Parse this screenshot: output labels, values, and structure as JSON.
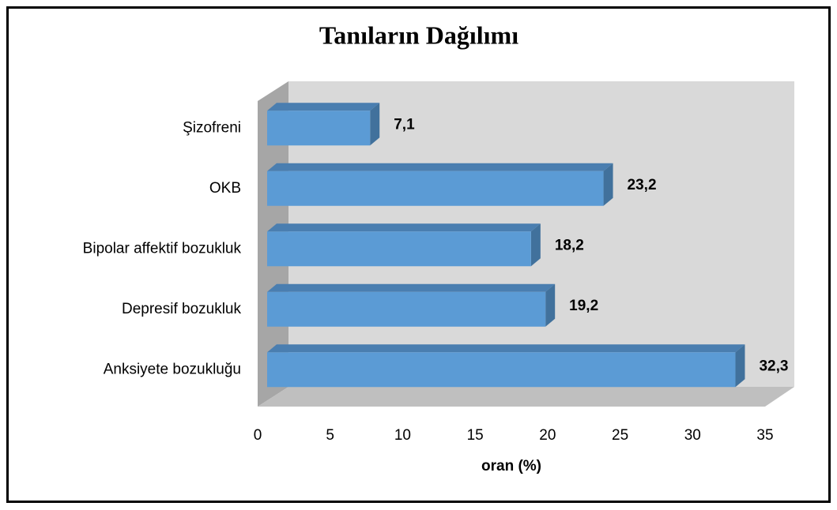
{
  "chart_data": {
    "type": "bar",
    "orientation": "horizontal",
    "title": "Tanıların Dağılımı",
    "categories": [
      "Şizofreni",
      "OKB",
      "Bipolar affektif bozukluk",
      "Depresif bozukluk",
      "Anksiyete bozukluğu"
    ],
    "values": [
      7.1,
      23.2,
      18.2,
      19.2,
      32.3
    ],
    "value_labels": [
      "7,1",
      "23,2",
      "18,2",
      "19,2",
      "32,3"
    ],
    "color": "#5b9bd5",
    "x_label": "oran (%)",
    "xlim": [
      0,
      35
    ],
    "xticks": [
      0,
      5,
      10,
      15,
      20,
      25,
      30,
      35
    ],
    "grid": false
  }
}
